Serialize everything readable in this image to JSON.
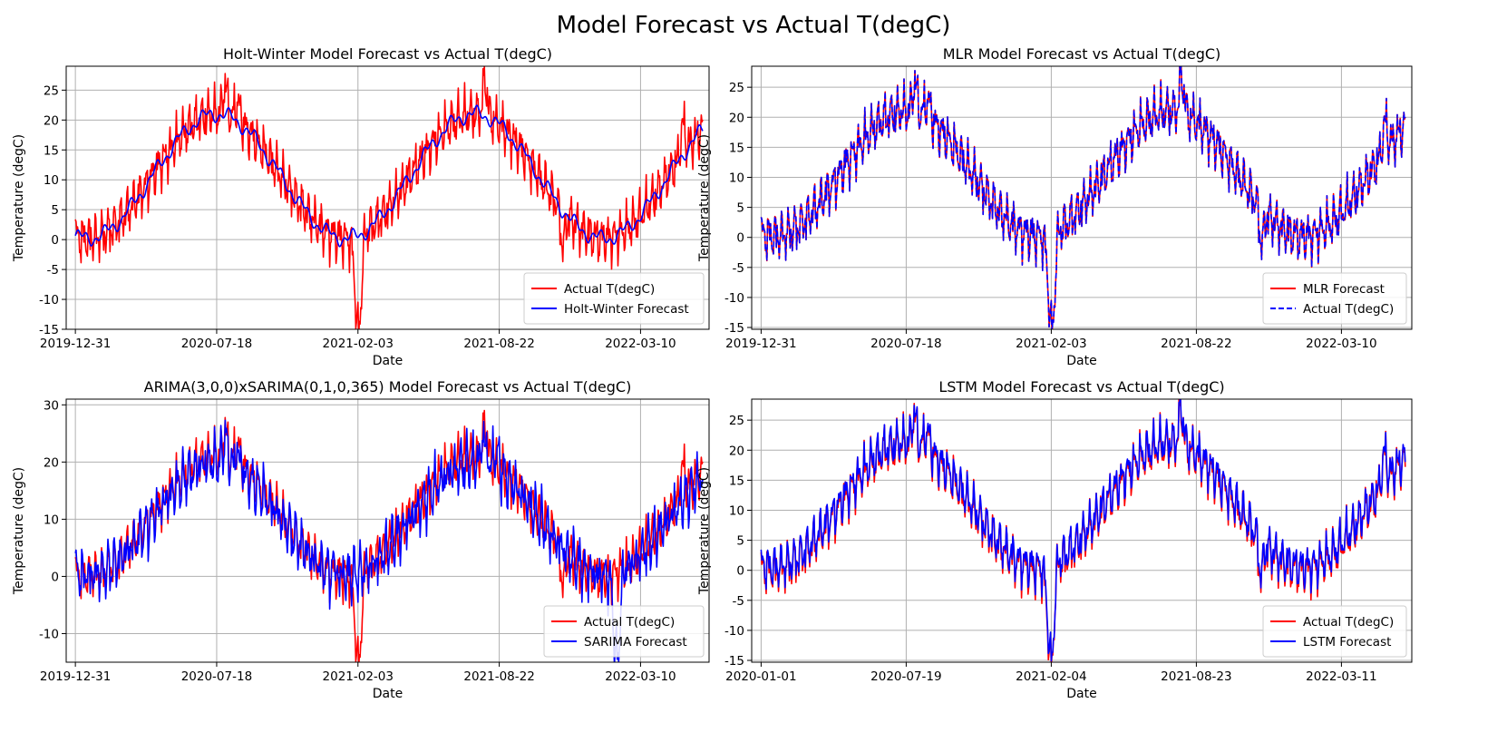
{
  "suptitle": "Model Forecast vs Actual T(degC)",
  "colors": {
    "actual": "#ff0000",
    "forecast": "#0000ff",
    "grid": "#b0b0b0"
  },
  "chart_data": [
    {
      "type": "line",
      "title": "Holt-Winter Model Forecast vs Actual T(degC)",
      "xlabel": "Date",
      "ylabel": "Temperature (degC)",
      "xlim": [
        "2019-12-18",
        "2022-06-15"
      ],
      "ylim": [
        -15,
        29
      ],
      "xticks": [
        "2019-12-31",
        "2020-07-18",
        "2021-02-03",
        "2021-08-22",
        "2022-03-10"
      ],
      "yticks": [
        -15,
        -10,
        -5,
        0,
        5,
        10,
        15,
        20,
        25
      ],
      "legend_position": "lower-right",
      "legend": [
        "Actual T(degC)",
        "Holt-Winter Forecast"
      ],
      "grid": true,
      "series": [
        {
          "name": "Actual T(degC)",
          "color": "#ff0000",
          "dash": "solid",
          "role": "actual",
          "x_range": [
            "2019-12-31",
            "2022-06-06"
          ]
        },
        {
          "name": "Holt-Winter Forecast",
          "color": "#0000ff",
          "dash": "solid",
          "role": "hw",
          "x_range": [
            "2019-12-31",
            "2022-06-06"
          ]
        }
      ]
    },
    {
      "type": "line",
      "title": "MLR Model Forecast vs Actual T(degC)",
      "xlabel": "Date",
      "ylabel": "Temperature (degC)",
      "xlim": [
        "2019-12-18",
        "2022-06-15"
      ],
      "ylim": [
        -15.3,
        28.5
      ],
      "xticks": [
        "2019-12-31",
        "2020-07-18",
        "2021-02-03",
        "2021-08-22",
        "2022-03-10"
      ],
      "yticks": [
        -15,
        -10,
        -5,
        0,
        5,
        10,
        15,
        20,
        25
      ],
      "legend_position": "lower-right",
      "legend": [
        "MLR Forecast",
        "Actual T(degC)"
      ],
      "grid": true,
      "series": [
        {
          "name": "MLR Forecast",
          "color": "#ff0000",
          "dash": "solid",
          "role": "actual",
          "x_range": [
            "2019-12-31",
            "2022-06-06"
          ]
        },
        {
          "name": "Actual T(degC)",
          "color": "#0000ff",
          "dash": "dashed",
          "role": "actual",
          "x_range": [
            "2019-12-31",
            "2022-06-06"
          ]
        }
      ]
    },
    {
      "type": "line",
      "title": "ARIMA(3,0,0)xSARIMA(0,1,0,365) Model Forecast vs Actual T(degC)",
      "xlabel": "Date",
      "ylabel": "Temperature (degC)",
      "xlim": [
        "2019-12-18",
        "2022-06-15"
      ],
      "ylim": [
        -15,
        31
      ],
      "xticks": [
        "2019-12-31",
        "2020-07-18",
        "2021-02-03",
        "2021-08-22",
        "2022-03-10"
      ],
      "yticks": [
        -10,
        0,
        10,
        20,
        30
      ],
      "legend_position": "lower-right",
      "legend": [
        "Actual T(degC)",
        "SARIMA Forecast"
      ],
      "grid": true,
      "series": [
        {
          "name": "Actual T(degC)",
          "color": "#ff0000",
          "dash": "solid",
          "role": "actual",
          "x_range": [
            "2019-12-31",
            "2022-06-06"
          ]
        },
        {
          "name": "SARIMA Forecast",
          "color": "#0000ff",
          "dash": "solid",
          "role": "sarima",
          "x_range": [
            "2019-12-31",
            "2022-06-06"
          ]
        }
      ]
    },
    {
      "type": "line",
      "title": "LSTM Model Forecast vs Actual T(degC)",
      "xlabel": "Date",
      "ylabel": "Temperature (degC)",
      "xlim": [
        "2019-12-19",
        "2022-06-16"
      ],
      "ylim": [
        -15.3,
        28.5
      ],
      "xticks": [
        "2020-01-01",
        "2020-07-19",
        "2021-02-04",
        "2021-08-23",
        "2022-03-11"
      ],
      "yticks": [
        -15,
        -10,
        -5,
        0,
        5,
        10,
        15,
        20,
        25
      ],
      "legend_position": "lower-right",
      "legend": [
        "Actual T(degC)",
        "LSTM Forecast"
      ],
      "grid": true,
      "series": [
        {
          "name": "Actual T(degC)",
          "color": "#ff0000",
          "dash": "solid",
          "role": "actual",
          "x_range": [
            "2020-01-01",
            "2022-06-07"
          ]
        },
        {
          "name": "LSTM Forecast",
          "color": "#0000ff",
          "dash": "solid",
          "role": "lstm",
          "x_range": [
            "2020-01-01",
            "2022-06-07"
          ]
        }
      ]
    }
  ]
}
